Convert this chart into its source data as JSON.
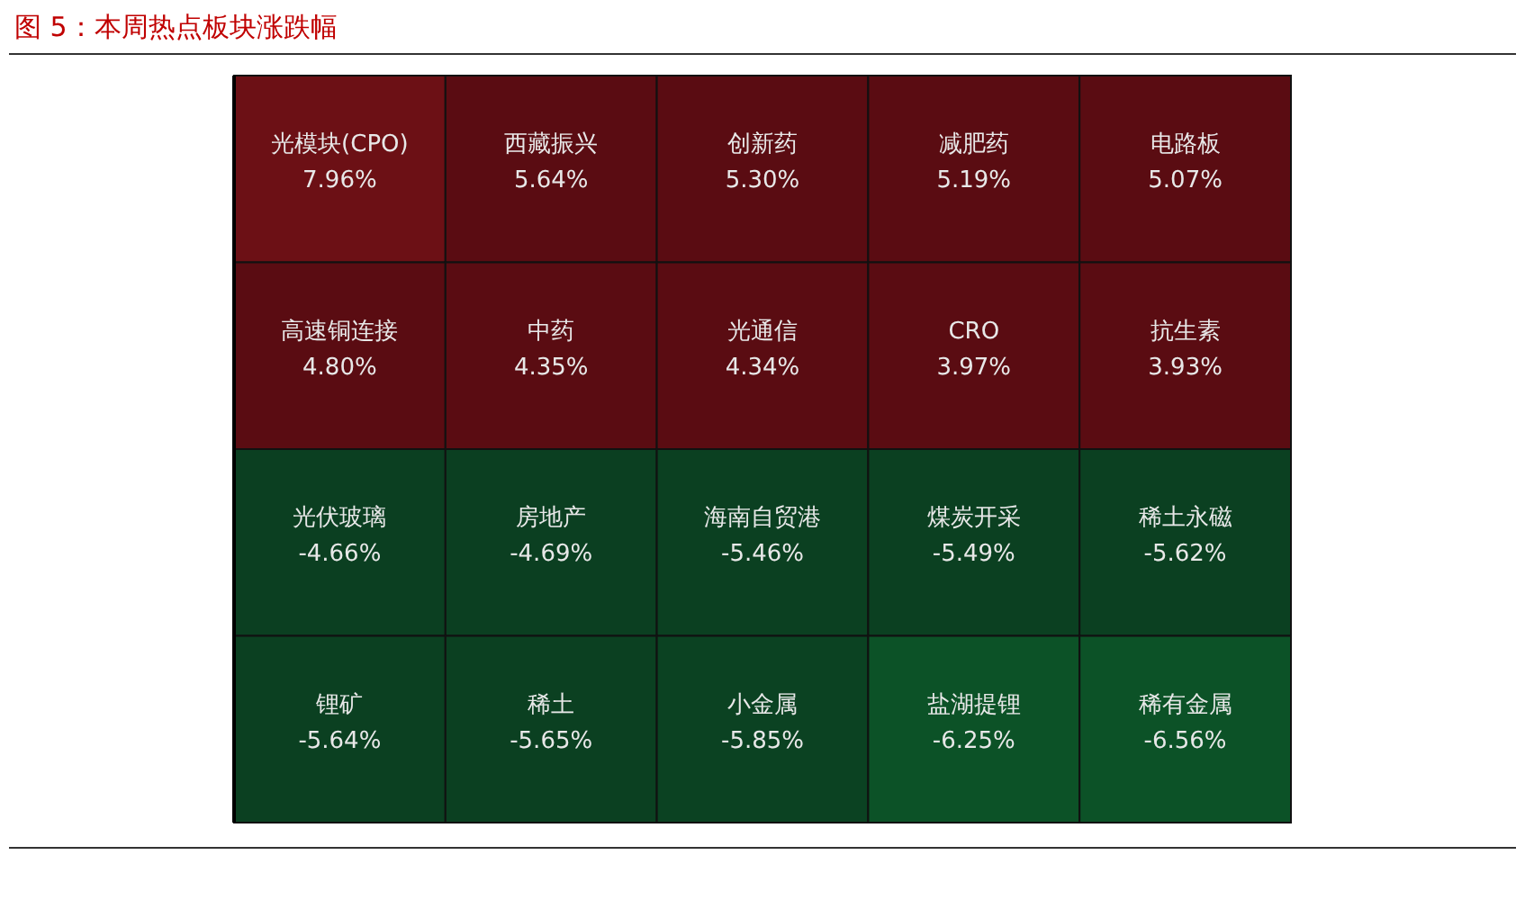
{
  "chart_data": {
    "type": "other",
    "title": "图 5：本周热点板块涨跌幅",
    "categories": [
      "光模块(CPO)",
      "西藏振兴",
      "创新药",
      "减肥药",
      "电路板",
      "高速铜连接",
      "中药",
      "光通信",
      "CRO",
      "抗生素",
      "光伏玻璃",
      "房地产",
      "海南自贸港",
      "煤炭开采",
      "稀土永磁",
      "锂矿",
      "稀土",
      "小金属",
      "盐湖提锂",
      "稀有金属"
    ],
    "values": [
      7.96,
      5.64,
      5.3,
      5.19,
      5.07,
      4.8,
      4.35,
      4.34,
      3.97,
      3.93,
      -4.66,
      -4.69,
      -5.46,
      -5.49,
      -5.62,
      -5.64,
      -5.65,
      -5.85,
      -6.25,
      -6.56
    ],
    "value_labels": [
      "7.96%",
      "5.64%",
      "5.30%",
      "5.19%",
      "5.07%",
      "4.80%",
      "4.35%",
      "4.34%",
      "3.97%",
      "3.93%",
      "-4.66%",
      "-4.69%",
      "-5.46%",
      "-5.49%",
      "-5.62%",
      "-5.64%",
      "-5.65%",
      "-5.85%",
      "-6.25%",
      "-6.56%"
    ],
    "colors": [
      "#6c1015",
      "#5a0c12",
      "#5a0c12",
      "#5a0c12",
      "#5a0c12",
      "#5a0c12",
      "#5a0c12",
      "#5a0c12",
      "#5a0c12",
      "#5a0c12",
      "#0b3f21",
      "#0b3f21",
      "#0b4021",
      "#0b4021",
      "#0b4021",
      "#0b4021",
      "#0b4021",
      "#0b4222",
      "#0c5227",
      "#0c5227"
    ]
  }
}
